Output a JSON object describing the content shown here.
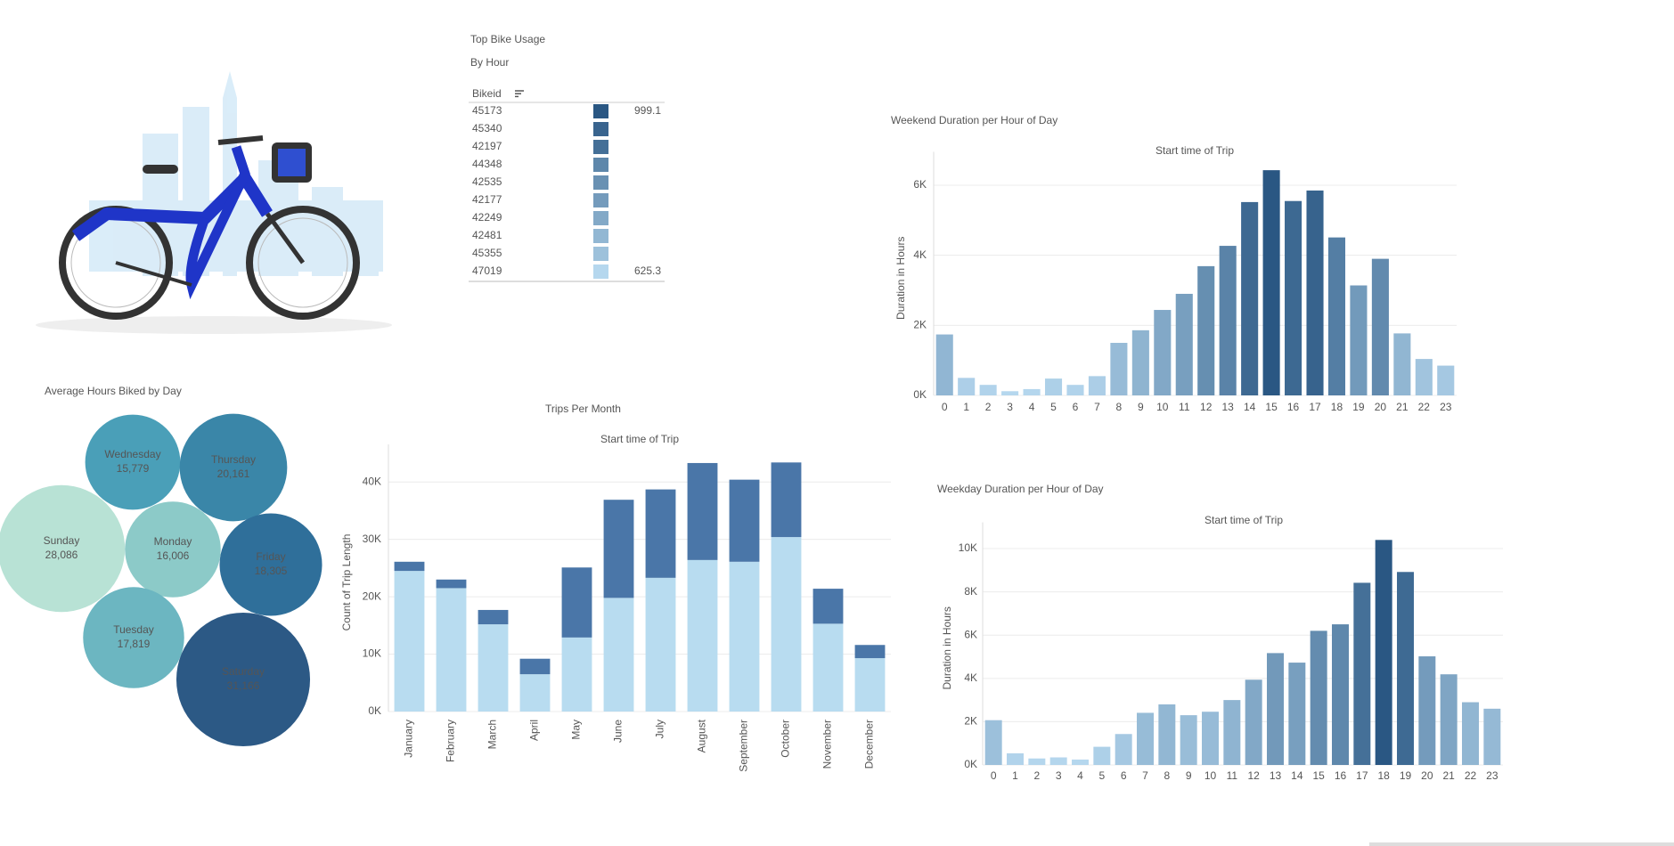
{
  "chart_data": [
    {
      "type": "highlight-table",
      "title": "Top Bike Usage",
      "subtitle": "By Hour",
      "column_label": "Bikeid",
      "categories": [
        "45173",
        "45340",
        "42197",
        "44348",
        "42535",
        "42177",
        "42249",
        "42481",
        "45355",
        "47019"
      ],
      "values": [
        999.1,
        960,
        930,
        860,
        830,
        800,
        760,
        720,
        690,
        625.3
      ],
      "value_labels": [
        "999.1",
        null,
        null,
        null,
        null,
        null,
        null,
        null,
        null,
        "625.3"
      ],
      "color_range": [
        "#b5d7ee",
        "#2a5783"
      ]
    },
    {
      "type": "bubble",
      "title": "Average Hours Biked by Day",
      "categories": [
        "Wednesday",
        "Thursday",
        "Sunday",
        "Monday",
        "Friday",
        "Tuesday",
        "Saturday"
      ],
      "values": [
        15779,
        20161,
        28086,
        16006,
        18305,
        17819,
        31166
      ],
      "value_labels": [
        "15,779",
        "20,161",
        "28,086",
        "16,006",
        "18,305",
        "17,819",
        "31,166"
      ],
      "colors": [
        "#4a9fb8",
        "#3a86a8",
        "#b8e2d5",
        "#8ccac8",
        "#2f6f9a",
        "#6cb6c1",
        "#2c5985"
      ]
    },
    {
      "type": "stacked-bar",
      "title": "Trips Per Month",
      "subtitle": "Start time of Trip",
      "y_label": "Count of Trip Length",
      "categories": [
        "January",
        "February",
        "March",
        "April",
        "May",
        "June",
        "July",
        "August",
        "September",
        "October",
        "November",
        "December"
      ],
      "series": [
        {
          "color": "#b8dcf0",
          "values": [
            24500,
            21500,
            15200,
            6500,
            12900,
            19800,
            23300,
            26400,
            26100,
            30400,
            15300,
            9300
          ]
        },
        {
          "color": "#4a76a8",
          "values": [
            1600,
            1500,
            2500,
            2700,
            12200,
            17100,
            15400,
            16900,
            14300,
            13000,
            6100,
            2300
          ]
        }
      ],
      "ylim": [
        0,
        45000
      ],
      "yticks": [
        {
          "value": 0,
          "label": "0K"
        },
        {
          "value": 10000,
          "label": "10K"
        },
        {
          "value": 20000,
          "label": "20K"
        },
        {
          "value": 30000,
          "label": "30K"
        },
        {
          "value": 40000,
          "label": "40K"
        }
      ],
      "grid": true
    },
    {
      "type": "bar",
      "title": "Weekend Duration per Hour of Day",
      "subtitle": "Start time of Trip",
      "y_label": "Duration in Hours",
      "categories": [
        "0",
        "1",
        "2",
        "3",
        "4",
        "5",
        "6",
        "7",
        "8",
        "9",
        "10",
        "11",
        "12",
        "13",
        "14",
        "15",
        "16",
        "17",
        "18",
        "19",
        "20",
        "21",
        "22",
        "23"
      ],
      "values": [
        1740,
        500,
        300,
        120,
        180,
        480,
        300,
        550,
        1500,
        1860,
        2440,
        2900,
        3690,
        4270,
        5520,
        6430,
        5550,
        5850,
        4510,
        3140,
        3900,
        1770,
        1040,
        850
      ],
      "ylim": [
        0,
        6700
      ],
      "yticks": [
        {
          "value": 0,
          "label": "0K"
        },
        {
          "value": 2000,
          "label": "2K"
        },
        {
          "value": 4000,
          "label": "4K"
        },
        {
          "value": 6000,
          "label": "6K"
        }
      ],
      "grid": true,
      "color_range": [
        "#b5d7ee",
        "#2a5783"
      ]
    },
    {
      "type": "bar",
      "title": "Weekday Duration per Hour of Day",
      "subtitle": "Start time of Trip",
      "y_label": "Duration in Hours",
      "categories": [
        "0",
        "1",
        "2",
        "3",
        "4",
        "5",
        "6",
        "7",
        "8",
        "9",
        "10",
        "11",
        "12",
        "13",
        "14",
        "15",
        "16",
        "17",
        "18",
        "19",
        "20",
        "21",
        "22",
        "23"
      ],
      "values": [
        2070,
        540,
        300,
        350,
        250,
        840,
        1430,
        2410,
        2800,
        2300,
        2460,
        3000,
        3940,
        5170,
        4730,
        6200,
        6500,
        8420,
        10400,
        8920,
        5020,
        4190,
        2900,
        2600
      ],
      "ylim": [
        0,
        10800
      ],
      "yticks": [
        {
          "value": 0,
          "label": "0K"
        },
        {
          "value": 2000,
          "label": "2K"
        },
        {
          "value": 4000,
          "label": "4K"
        },
        {
          "value": 6000,
          "label": "6K"
        },
        {
          "value": 8000,
          "label": "8K"
        },
        {
          "value": 10000,
          "label": "10K"
        }
      ],
      "grid": true,
      "color_range": [
        "#b5d7ee",
        "#2a5783"
      ]
    }
  ]
}
